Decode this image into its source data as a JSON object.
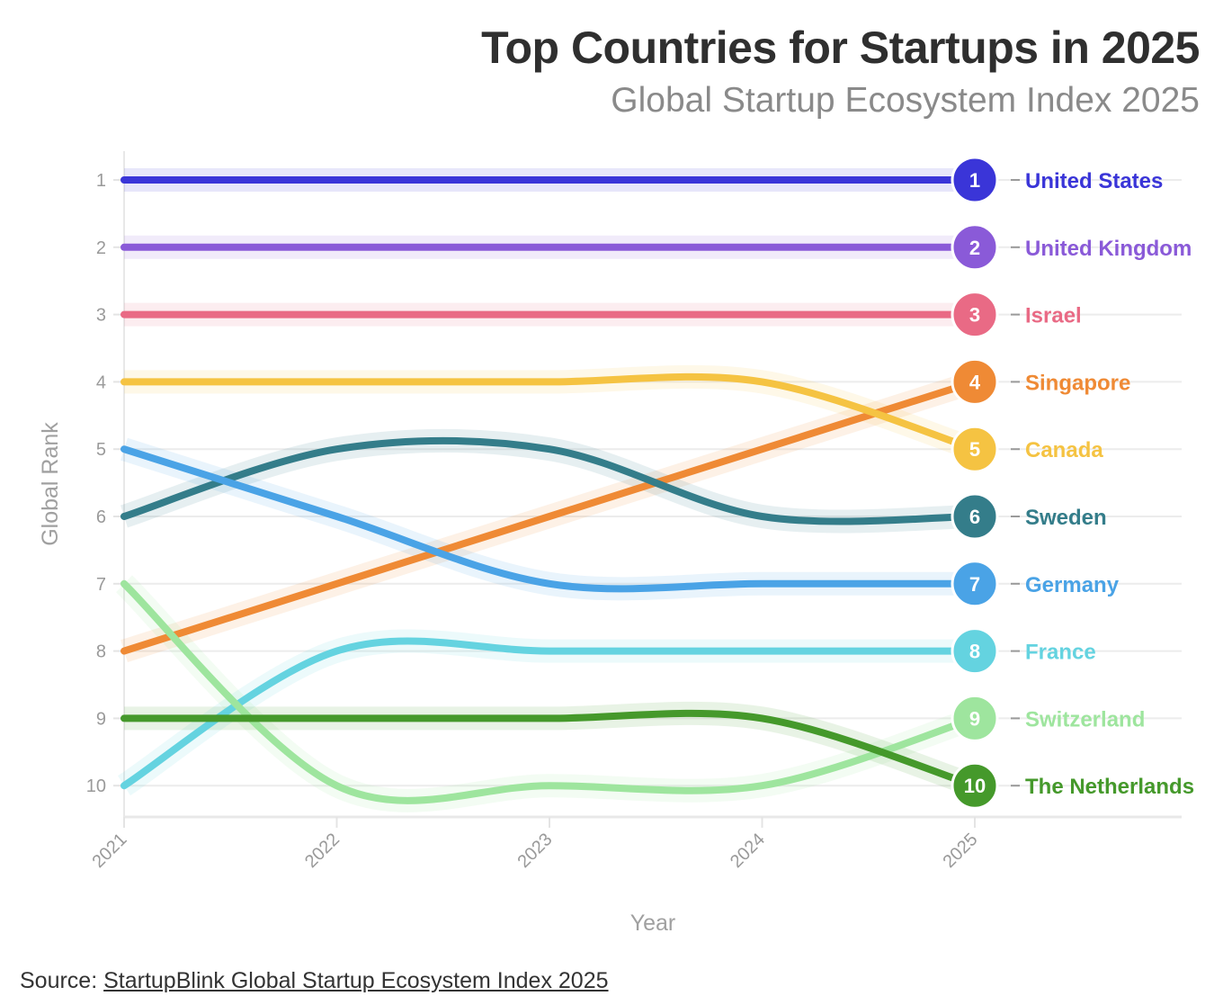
{
  "header": {
    "title": "Top Countries for Startups in 2025",
    "subtitle": "Global Startup Ecosystem Index 2025"
  },
  "footer": {
    "source_prefix": "Source: ",
    "source_link": "StartupBlink Global Startup Ecosystem Index 2025"
  },
  "chart_data": {
    "type": "line",
    "title": "Top Countries for Startups in 2025",
    "subtitle": "Global Startup Ecosystem Index 2025",
    "xlabel": "Year",
    "ylabel": "Global Rank",
    "x": [
      "2021",
      "2022",
      "2023",
      "2024",
      "2025"
    ],
    "y_ticks": [
      "1",
      "2",
      "3",
      "4",
      "5",
      "6",
      "7",
      "8",
      "9",
      "10"
    ],
    "ylim": [
      10.45,
      0.55
    ],
    "y_inverted": true,
    "grid": true,
    "smoothed": true,
    "legend": "right end labels",
    "series": [
      {
        "name": "United States",
        "color": "#3a35d8",
        "values": [
          1,
          1,
          1,
          1,
          1
        ],
        "end_rank": "1"
      },
      {
        "name": "United Kingdom",
        "color": "#8a5ad8",
        "values": [
          2,
          2,
          2,
          2,
          2
        ],
        "end_rank": "2"
      },
      {
        "name": "Israel",
        "color": "#e96a85",
        "values": [
          3,
          3,
          3,
          3,
          3
        ],
        "end_rank": "3"
      },
      {
        "name": "Singapore",
        "color": "#ef8a35",
        "values": [
          8,
          7,
          6,
          5,
          4
        ],
        "end_rank": "4"
      },
      {
        "name": "Canada",
        "color": "#f5c342",
        "values": [
          4,
          4,
          4,
          4,
          5
        ],
        "end_rank": "5"
      },
      {
        "name": "Sweden",
        "color": "#347d8a",
        "values": [
          6,
          5,
          5,
          6,
          6
        ],
        "end_rank": "6"
      },
      {
        "name": "Germany",
        "color": "#4aa3e6",
        "values": [
          5,
          6,
          7,
          7,
          7
        ],
        "end_rank": "7"
      },
      {
        "name": "France",
        "color": "#64d3e0",
        "values": [
          10,
          8,
          8,
          8,
          8
        ],
        "end_rank": "8"
      },
      {
        "name": "Switzerland",
        "color": "#9ee59e",
        "values": [
          7,
          10,
          10,
          10,
          9
        ],
        "end_rank": "9"
      },
      {
        "name": "The Netherlands",
        "color": "#45992b",
        "values": [
          9,
          9,
          9,
          9,
          10
        ],
        "end_rank": "10"
      }
    ]
  }
}
